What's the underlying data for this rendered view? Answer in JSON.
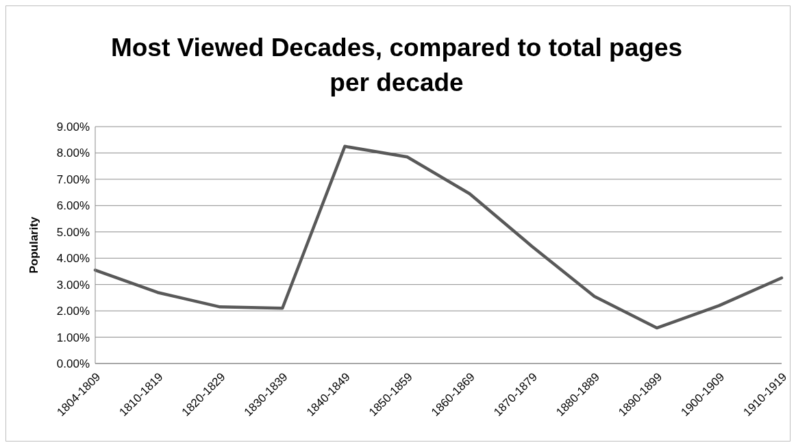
{
  "chart_data": {
    "type": "line",
    "title": "Most Viewed Decades, compared to total pages per decade",
    "ylabel": "Popularity",
    "categories": [
      "1804-1809",
      "1810-1819",
      "1820-1829",
      "1830-1839",
      "1840-1849",
      "1850-1859",
      "1860-1869",
      "1870-1879",
      "1880-1889",
      "1890-1899",
      "1900-1909",
      "1910-1919"
    ],
    "series": [
      {
        "color": "#595959",
        "values": [
          3.55,
          2.7,
          2.15,
          2.1,
          8.25,
          7.85,
          6.45,
          4.45,
          2.55,
          1.35,
          2.2,
          3.25
        ]
      }
    ],
    "ylim": [
      0,
      9
    ],
    "yticks": [
      {
        "value": 0,
        "label": "0.00%"
      },
      {
        "value": 1,
        "label": "1.00%"
      },
      {
        "value": 2,
        "label": "2.00%"
      },
      {
        "value": 3,
        "label": "3.00%"
      },
      {
        "value": 4,
        "label": "4.00%"
      },
      {
        "value": 5,
        "label": "5.00%"
      },
      {
        "value": 6,
        "label": "6.00%"
      },
      {
        "value": 7,
        "label": "7.00%"
      },
      {
        "value": 8,
        "label": "8.00%"
      },
      {
        "value": 9,
        "label": "9.00%"
      }
    ],
    "grid": "y",
    "legend": false,
    "marker": "none",
    "line_style": "solid"
  }
}
